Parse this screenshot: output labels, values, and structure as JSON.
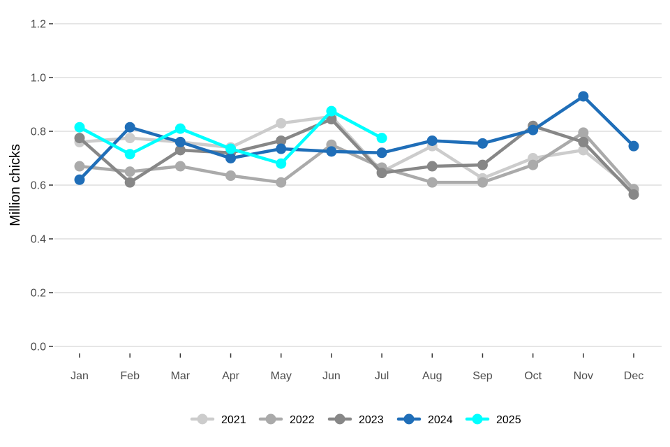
{
  "chart_data": {
    "type": "line",
    "ylabel": "Million chicks",
    "xlabel": "",
    "ylim": [
      0,
      1.2
    ],
    "yticks": [
      0,
      0.2,
      0.4,
      0.6,
      0.8,
      1.0,
      1.2
    ],
    "ytick_labels": [
      "0.0",
      "0.2",
      "0.4",
      "0.6",
      "0.8",
      "1.0",
      "1.2"
    ],
    "categories": [
      "Jan",
      "Feb",
      "Mar",
      "Apr",
      "May",
      "Jun",
      "Jul",
      "Aug",
      "Sep",
      "Oct",
      "Nov",
      "Dec"
    ],
    "grid": true,
    "legend_position": "bottom",
    "series": [
      {
        "name": "2021",
        "color": "#cccccc",
        "values": [
          0.76,
          0.775,
          0.76,
          0.74,
          0.83,
          0.855,
          0.65,
          0.745,
          0.625,
          0.7,
          0.73,
          0.58
        ]
      },
      {
        "name": "2022",
        "color": "#aaaaaa",
        "values": [
          0.67,
          0.65,
          0.67,
          0.635,
          0.61,
          0.75,
          0.665,
          0.61,
          0.61,
          0.675,
          0.795,
          0.585
        ]
      },
      {
        "name": "2023",
        "color": "#878787",
        "values": [
          0.775,
          0.61,
          0.73,
          0.72,
          0.765,
          0.845,
          0.645,
          0.67,
          0.675,
          0.82,
          0.76,
          0.565
        ]
      },
      {
        "name": "2024",
        "color": "#1f6eb8",
        "values": [
          0.62,
          0.815,
          0.76,
          0.7,
          0.735,
          0.725,
          0.72,
          0.765,
          0.755,
          0.805,
          0.93,
          0.745
        ]
      },
      {
        "name": "2025",
        "color": "#00ffff",
        "values": [
          0.815,
          0.715,
          0.81,
          0.735,
          0.68,
          0.875,
          0.775,
          null,
          null,
          null,
          null,
          null
        ]
      }
    ]
  }
}
